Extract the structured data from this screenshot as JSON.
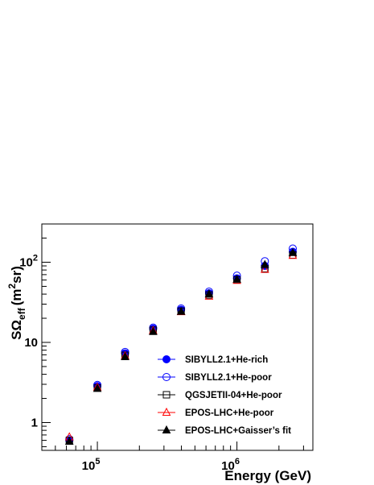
{
  "chart_data": {
    "type": "scatter",
    "x_scale": "log",
    "y_scale": "log",
    "xlim": [
      40000,
      3500000
    ],
    "ylim": [
      0.45,
      300
    ],
    "xlabel": "Energy (GeV)",
    "ylabel_parts": {
      "main": "SΩ",
      "sub": "eff",
      "unit_open": "(m",
      "sup": "2",
      "unit_close": "sr)"
    },
    "x_ticks": [
      {
        "value": 100000,
        "base": "10",
        "exp": "5"
      },
      {
        "value": 1000000,
        "base": "10",
        "exp": "6"
      }
    ],
    "y_ticks": [
      {
        "value": 1,
        "label": "1"
      },
      {
        "value": 10,
        "label": "10"
      },
      {
        "value": 100,
        "base": "10",
        "exp": "2"
      }
    ],
    "legend_position": "bottom-right",
    "series": [
      {
        "name": "SIBYLL2.1+He-rich",
        "marker": "circle-filled",
        "color": "#0000ff",
        "x": [
          63000,
          100000,
          158000,
          251000,
          398000,
          631000,
          1000000,
          1585000,
          2512000
        ],
        "y": [
          0.6,
          2.85,
          7.3,
          14.8,
          25.5,
          41,
          63,
          90,
          135
        ]
      },
      {
        "name": "SIBYLL2.1+He-poor",
        "marker": "circle-open",
        "color": "#0000ff",
        "x": [
          63000,
          100000,
          158000,
          251000,
          398000,
          631000,
          1000000,
          1585000,
          2512000
        ],
        "y": [
          0.62,
          2.95,
          7.6,
          15.3,
          26.5,
          43,
          68,
          103,
          148
        ]
      },
      {
        "name": "QGSJETII-04+He-poor",
        "marker": "square-open",
        "color": "#000000",
        "x": [
          63000,
          100000,
          158000,
          251000,
          398000,
          631000,
          1000000,
          1585000,
          2512000
        ],
        "y": [
          0.6,
          2.7,
          6.9,
          14.2,
          24.5,
          39,
          60,
          83,
          123
        ]
      },
      {
        "name": "EPOS-LHC+He-poor",
        "marker": "triangle-open",
        "color": "#ff0000",
        "x": [
          63000,
          100000,
          158000,
          251000,
          398000,
          631000,
          1000000,
          1585000,
          2512000
        ],
        "y": [
          0.66,
          2.75,
          6.8,
          14.0,
          24.0,
          37.5,
          59,
          81,
          121
        ]
      },
      {
        "name": "EPOS-LHC+Gaisser’s fit",
        "marker": "triangle-filled",
        "color": "#000000",
        "x": [
          63000,
          100000,
          158000,
          251000,
          398000,
          631000,
          1000000,
          1585000,
          2512000
        ],
        "y": [
          0.58,
          2.65,
          6.6,
          13.6,
          24.2,
          40,
          61,
          93,
          131
        ]
      }
    ]
  }
}
